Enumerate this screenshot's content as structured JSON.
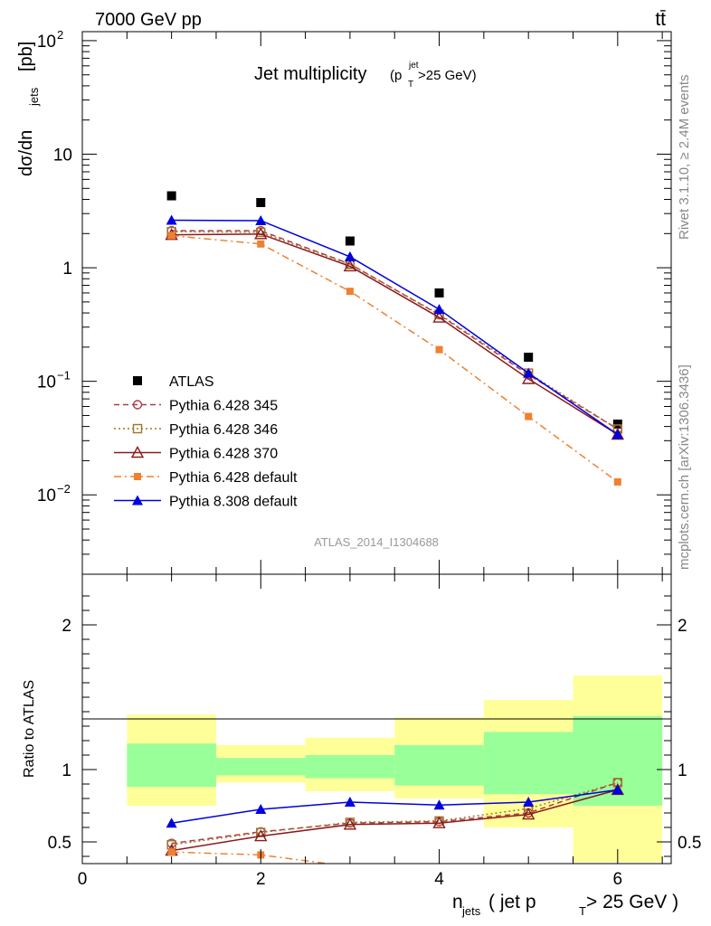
{
  "header": {
    "energy_label": "7000 GeV pp",
    "process_label": "tt̄"
  },
  "side_text": {
    "rivet": "Rivet 3.1.10, ≥ 2.4M events",
    "mcplots": "mcplots.cern.ch [arXiv:1306.3436]"
  },
  "chart_data": [
    {
      "type": "scatter",
      "panel": "main",
      "title_main": "Jet multiplicity",
      "title_sub_p": "p",
      "title_sub_sup": "jet",
      "title_sub_sub": "T",
      "title_sub_rest": ">25 GeV",
      "ylabel": "dσ/dn",
      "ylabel_sub": "jets",
      "ylabel_unit": "[pb]",
      "yscale": "log",
      "ylim": [
        0.002,
        120
      ],
      "xlim": [
        0,
        6.6
      ],
      "analysis_tag": "ATLAS_2014_I1304688",
      "y_tick_labels": [
        {
          "value": 100,
          "base": "10",
          "exp": "2"
        },
        {
          "value": 10,
          "base": "10",
          "exp": ""
        },
        {
          "value": 1,
          "base": "1",
          "exp": ""
        },
        {
          "value": 0.1,
          "base": "10",
          "exp": "−1"
        },
        {
          "value": 0.01,
          "base": "10",
          "exp": "−2"
        }
      ],
      "x": [
        1,
        2,
        3,
        4,
        5,
        6
      ],
      "series": [
        {
          "name": "ATLAS",
          "color": "#000000",
          "marker": "square-filled",
          "line": "none",
          "values": [
            4.3,
            3.75,
            1.72,
            0.6,
            0.163,
            0.042
          ]
        },
        {
          "name": "Pythia 6.428 345",
          "color": "#b03a48",
          "marker": "circle-open",
          "line": "dashed",
          "values": [
            2.12,
            2.12,
            1.08,
            0.385,
            0.114,
            0.038
          ]
        },
        {
          "name": "Pythia 6.428 346",
          "color": "#a0752a",
          "marker": "square-open",
          "line": "dotted",
          "values": [
            2.08,
            2.05,
            1.07,
            0.39,
            0.118,
            0.038
          ]
        },
        {
          "name": "Pythia 6.428 370",
          "color": "#8b1a1a",
          "marker": "triangle-open",
          "line": "solid",
          "values": [
            1.95,
            1.98,
            1.03,
            0.365,
            0.105,
            0.034
          ]
        },
        {
          "name": "Pythia 6.428 default",
          "color": "#f08030",
          "marker": "square-small-filled",
          "line": "dashdot",
          "values": [
            1.92,
            1.62,
            0.62,
            0.19,
            0.049,
            0.013
          ]
        },
        {
          "name": "Pythia 8.308 default",
          "color": "#0000e0",
          "marker": "triangle-filled",
          "line": "solid",
          "values": [
            2.62,
            2.6,
            1.25,
            0.43,
            0.118,
            0.034
          ]
        }
      ]
    },
    {
      "type": "scatter",
      "panel": "ratio",
      "ylabel": "Ratio to ATLAS",
      "ylim": [
        0.35,
        2.35
      ],
      "xlim": [
        0,
        6.6
      ],
      "xlabel_n": "n",
      "xlabel_sub": "jets",
      "xlabel_rest1": " ( jet p",
      "xlabel_sub2": "T",
      "xlabel_rest2": " > 25 GeV )",
      "y_ticks": [
        0.5,
        1,
        2
      ],
      "x_ticks": [
        0,
        2,
        4,
        6
      ],
      "bands": [
        {
          "x0": 0.5,
          "x1": 1.5,
          "stat_lo": 0.88,
          "stat_hi": 1.18,
          "tot_lo": 0.75,
          "tot_hi": 1.38
        },
        {
          "x0": 1.5,
          "x1": 2.5,
          "stat_lo": 0.96,
          "stat_hi": 1.08,
          "tot_lo": 0.91,
          "tot_hi": 1.17
        },
        {
          "x0": 2.5,
          "x1": 3.5,
          "stat_lo": 0.94,
          "stat_hi": 1.1,
          "tot_lo": 0.85,
          "tot_hi": 1.22
        },
        {
          "x0": 3.5,
          "x1": 4.5,
          "stat_lo": 0.89,
          "stat_hi": 1.17,
          "tot_lo": 0.8,
          "tot_hi": 1.36
        },
        {
          "x0": 4.5,
          "x1": 5.5,
          "stat_lo": 0.83,
          "stat_hi": 1.26,
          "tot_lo": 0.6,
          "tot_hi": 1.48
        },
        {
          "x0": 5.5,
          "x1": 6.5,
          "stat_lo": 0.75,
          "stat_hi": 1.37,
          "tot_lo": 0.36,
          "tot_hi": 1.65
        }
      ],
      "x": [
        1,
        2,
        3,
        4,
        5,
        6
      ],
      "series": [
        {
          "name": "Pythia 6.428 345",
          "values": [
            0.49,
            0.57,
            0.63,
            0.64,
            0.7,
            0.91
          ]
        },
        {
          "name": "Pythia 6.428 346",
          "values": [
            0.48,
            0.565,
            0.635,
            0.645,
            0.73,
            0.91
          ]
        },
        {
          "name": "Pythia 6.428 370",
          "values": [
            0.44,
            0.54,
            0.62,
            0.63,
            0.69,
            0.86
          ]
        },
        {
          "name": "Pythia 6.428 default",
          "values": [
            0.43,
            0.41,
            0.33,
            null,
            null,
            null
          ]
        },
        {
          "name": "Pythia 8.308 default",
          "values": [
            0.63,
            0.725,
            0.775,
            0.755,
            0.775,
            0.86
          ]
        }
      ]
    }
  ]
}
